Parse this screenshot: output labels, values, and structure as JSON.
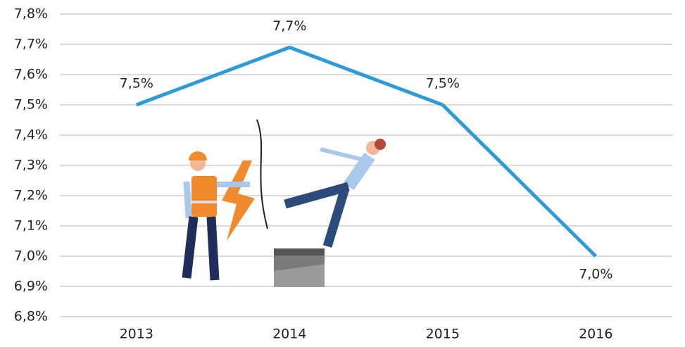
{
  "chart_data": {
    "type": "line",
    "categories": [
      "2013",
      "2014",
      "2015",
      "2016"
    ],
    "series": [
      {
        "color": "#2e9bd6",
        "values": [
          7.5,
          7.69,
          7.5,
          7.0
        ],
        "value_labels": [
          "7,5%",
          "7,7%",
          "7,5%",
          "7,0%"
        ]
      }
    ],
    "ylim": [
      6.8,
      7.8
    ],
    "yticks": [
      {
        "value": 6.8,
        "label": "6,8%"
      },
      {
        "value": 6.9,
        "label": "6,9%"
      },
      {
        "value": 7.0,
        "label": "7,0%"
      },
      {
        "value": 7.1,
        "label": "7,1%"
      },
      {
        "value": 7.2,
        "label": "7,2%"
      },
      {
        "value": 7.3,
        "label": "7,3%"
      },
      {
        "value": 7.4,
        "label": "7,4%"
      },
      {
        "value": 7.5,
        "label": "7,5%"
      },
      {
        "value": 7.6,
        "label": "7,6%"
      },
      {
        "value": 7.7,
        "label": "7,7%"
      },
      {
        "value": 7.8,
        "label": "7,8%"
      }
    ],
    "grid": true
  }
}
